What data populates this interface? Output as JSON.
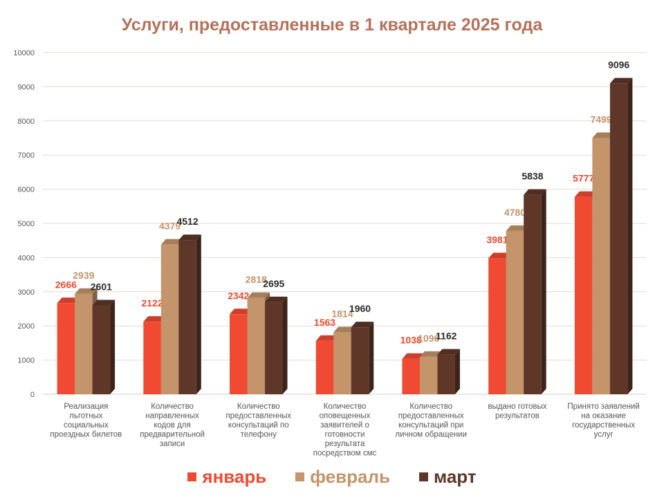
{
  "chart_data": {
    "type": "bar",
    "title": "Услуги, предоставленные в 1 квартале 2025 года",
    "categories": [
      [
        "Реализация",
        "льготных",
        "социальных",
        "проездных билетов"
      ],
      [
        "Количество",
        "направленных",
        "кодов для",
        "предварительной",
        "записи"
      ],
      [
        "Количество",
        "предоставленных",
        "консультаций   по",
        "телефону"
      ],
      [
        "Количество",
        "оповещенных",
        "заявителей о",
        "готовности",
        "результата",
        "посредством смс"
      ],
      [
        "Количество",
        "предоставленных",
        "консультаций  при",
        "личном обращении"
      ],
      [
        "выдано готовых",
        "результатов"
      ],
      [
        "Принято заявлений",
        "на оказание",
        "государственных",
        "услуг"
      ]
    ],
    "series": [
      {
        "name": "январь",
        "color": "#f04a32",
        "values": [
          2666,
          2122,
          2342,
          1563,
          1038,
          3981,
          5777
        ]
      },
      {
        "name": "февраль",
        "color": "#c4946a",
        "values": [
          2939,
          4379,
          2818,
          1814,
          1096,
          4780,
          7499
        ]
      },
      {
        "name": "март",
        "color": "#5e3728",
        "values": [
          2601,
          4512,
          2695,
          1960,
          1162,
          5838,
          9096
        ]
      }
    ],
    "ylim": [
      0,
      10000
    ],
    "yticks": [
      0,
      1000,
      2000,
      3000,
      4000,
      5000,
      6000,
      7000,
      8000,
      9000,
      10000
    ],
    "grid": true,
    "legend_position": "bottom"
  }
}
